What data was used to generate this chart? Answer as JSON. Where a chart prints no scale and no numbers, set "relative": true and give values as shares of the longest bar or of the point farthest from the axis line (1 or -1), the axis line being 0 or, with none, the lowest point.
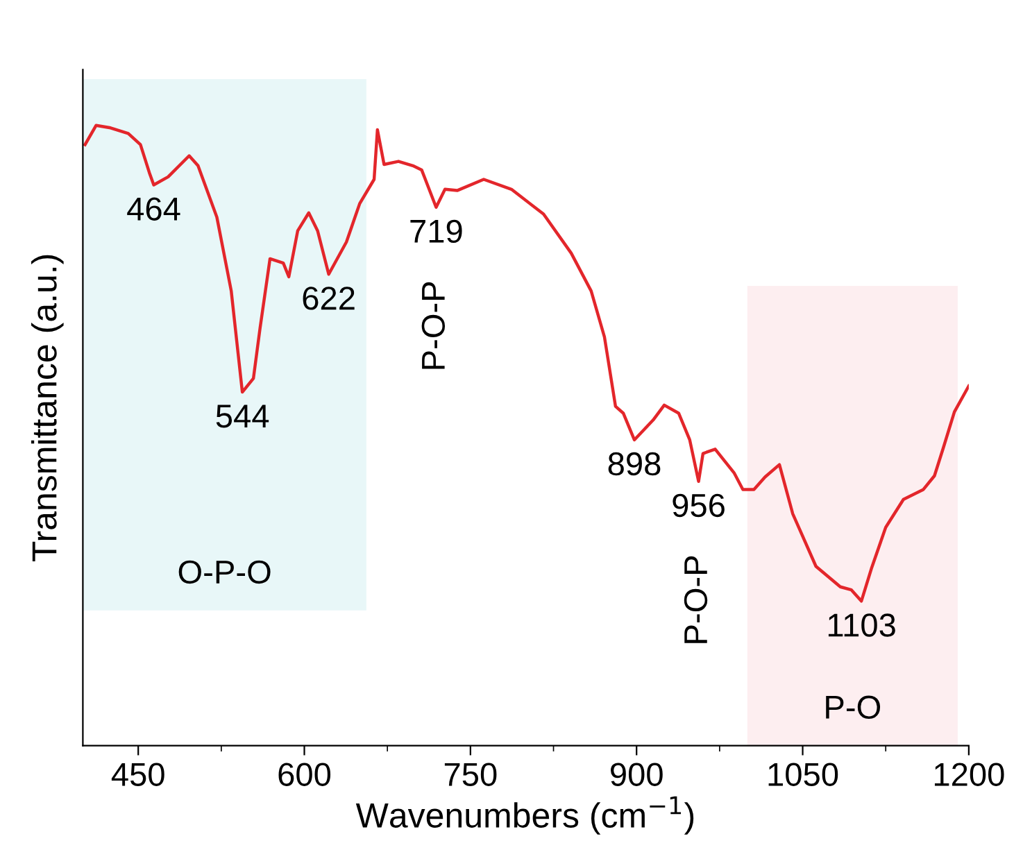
{
  "chart_data": {
    "type": "line",
    "relative": true,
    "xlabel": "Wavenumbers (cm$^{−1}$)",
    "ylabel": "Transmittance (a.u.)",
    "xlim": [
      400,
      1200
    ],
    "xticks": [
      450,
      600,
      750,
      900,
      1050,
      1200
    ],
    "grid": false,
    "legend": false,
    "marker": "none",
    "line_style": "solid",
    "series": [
      {
        "color": "#e3262b",
        "x": [
          402,
          412,
          425,
          441,
          452,
          460,
          464,
          477,
          496,
          504,
          521,
          534,
          544,
          554,
          560,
          569,
          581,
          586,
          594,
          604,
          612,
          622,
          638,
          650,
          663,
          666,
          672,
          685,
          698,
          706,
          719,
          727,
          738,
          762,
          787,
          816,
          841,
          859,
          871,
          881,
          888,
          898,
          915,
          925,
          938,
          948,
          956,
          960,
          971,
          988,
          996,
          1006,
          1016,
          1029,
          1041,
          1062,
          1084,
          1094,
          1103,
          1112,
          1125,
          1141,
          1159,
          1169,
          1177,
          1187,
          1200
        ],
        "values": [
          0.969,
          1,
          0.996,
          0.987,
          0.969,
          0.924,
          0.904,
          0.917,
          0.951,
          0.935,
          0.852,
          0.733,
          0.57,
          0.592,
          0.673,
          0.785,
          0.778,
          0.756,
          0.83,
          0.859,
          0.83,
          0.76,
          0.812,
          0.874,
          0.913,
          0.993,
          0.937,
          0.942,
          0.935,
          0.928,
          0.868,
          0.897,
          0.895,
          0.913,
          0.897,
          0.857,
          0.794,
          0.733,
          0.659,
          0.547,
          0.536,
          0.493,
          0.525,
          0.549,
          0.536,
          0.493,
          0.426,
          0.471,
          0.478,
          0.44,
          0.413,
          0.413,
          0.433,
          0.453,
          0.374,
          0.289,
          0.256,
          0.251,
          0.233,
          0.285,
          0.352,
          0.397,
          0.413,
          0.435,
          0.48,
          0.538,
          0.58
        ]
      }
    ],
    "bands": [
      {
        "axis": "x",
        "from": 400,
        "to": 656,
        "label": "O-P-O",
        "color": "#e8f7f8"
      },
      {
        "axis": "x",
        "from": 1000,
        "to": 1190,
        "label": "P-O",
        "color": "#fdeef0"
      }
    ],
    "annotations": [
      {
        "text": "464",
        "x": 464,
        "y": 0.904
      },
      {
        "text": "544",
        "x": 544,
        "y": 0.57
      },
      {
        "text": "622",
        "x": 622,
        "y": 0.76
      },
      {
        "text": "719",
        "x": 719,
        "y": 0.868
      },
      {
        "text": "P-O-P",
        "x": 719,
        "y": 0.868
      },
      {
        "text": "898",
        "x": 898,
        "y": 0.493
      },
      {
        "text": "956",
        "x": 956,
        "y": 0.426
      },
      {
        "text": "P-O-P",
        "x": 956,
        "y": 0.426
      },
      {
        "text": "1103",
        "x": 1103,
        "y": 0.233
      }
    ]
  }
}
